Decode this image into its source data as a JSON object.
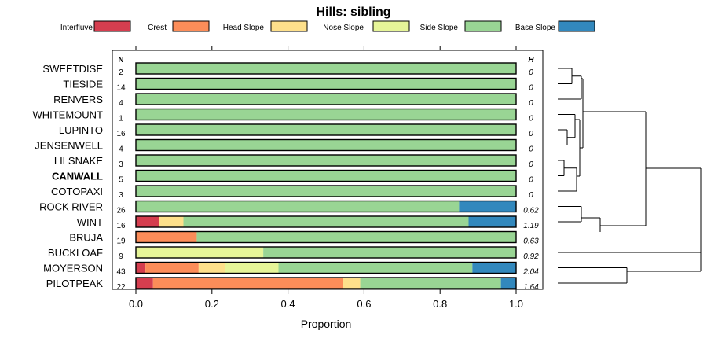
{
  "chart_data": {
    "type": "bar",
    "stacked": true,
    "orientation": "horizontal",
    "title": "Hills: sibling",
    "xlabel": "Proportion",
    "xlim": [
      0,
      1
    ],
    "xticks": [
      "0.0",
      "0.2",
      "0.4",
      "0.6",
      "0.8",
      "1.0"
    ],
    "n_header": "N",
    "h_header": "H",
    "legend_position": "top",
    "classes": [
      {
        "name": "Interfluve",
        "color": "#d53e4f"
      },
      {
        "name": "Crest",
        "color": "#fc8d59"
      },
      {
        "name": "Head Slope",
        "color": "#fee08b"
      },
      {
        "name": "Nose Slope",
        "color": "#e6f598"
      },
      {
        "name": "Side Slope",
        "color": "#99d594"
      },
      {
        "name": "Base Slope",
        "color": "#3288bd"
      }
    ],
    "rows": [
      {
        "name": "SWEETDISE",
        "n": "2",
        "h": "0",
        "bold": false,
        "values": [
          0,
          0,
          0,
          0,
          1.0,
          0
        ]
      },
      {
        "name": "TIESIDE",
        "n": "14",
        "h": "0",
        "bold": false,
        "values": [
          0,
          0,
          0,
          0,
          1.0,
          0
        ]
      },
      {
        "name": "RENVERS",
        "n": "4",
        "h": "0",
        "bold": false,
        "values": [
          0,
          0,
          0,
          0,
          1.0,
          0
        ]
      },
      {
        "name": "WHITEMOUNT",
        "n": "1",
        "h": "0",
        "bold": false,
        "values": [
          0,
          0,
          0,
          0,
          1.0,
          0
        ]
      },
      {
        "name": "LUPINTO",
        "n": "16",
        "h": "0",
        "bold": false,
        "values": [
          0,
          0,
          0,
          0,
          1.0,
          0
        ]
      },
      {
        "name": "JENSENWELL",
        "n": "4",
        "h": "0",
        "bold": false,
        "values": [
          0,
          0,
          0,
          0,
          1.0,
          0
        ]
      },
      {
        "name": "LILSNAKE",
        "n": "3",
        "h": "0",
        "bold": false,
        "values": [
          0,
          0,
          0,
          0,
          1.0,
          0
        ]
      },
      {
        "name": "CANWALL",
        "n": "5",
        "h": "0",
        "bold": true,
        "values": [
          0,
          0,
          0,
          0,
          1.0,
          0
        ]
      },
      {
        "name": "COTOPAXI",
        "n": "3",
        "h": "0",
        "bold": false,
        "values": [
          0,
          0,
          0,
          0,
          1.0,
          0
        ]
      },
      {
        "name": "ROCK RIVER",
        "n": "26",
        "h": "0.62",
        "bold": false,
        "values": [
          0,
          0,
          0,
          0,
          0.85,
          0.15
        ]
      },
      {
        "name": "WINT",
        "n": "16",
        "h": "1.19",
        "bold": false,
        "values": [
          0.06,
          0,
          0.065,
          0,
          0.75,
          0.125
        ]
      },
      {
        "name": "BRUJA",
        "n": "19",
        "h": "0.63",
        "bold": false,
        "values": [
          0,
          0.16,
          0,
          0,
          0.84,
          0
        ]
      },
      {
        "name": "BUCKLOAF",
        "n": "9",
        "h": "0.92",
        "bold": false,
        "values": [
          0,
          0,
          0,
          0.335,
          0.665,
          0
        ]
      },
      {
        "name": "MOYERSON",
        "n": "43",
        "h": "2.04",
        "bold": false,
        "values": [
          0.025,
          0.14,
          0.07,
          0.14,
          0.51,
          0.115
        ]
      },
      {
        "name": "PILOTPEAK",
        "n": "22",
        "h": "1.64",
        "bold": false,
        "values": [
          0.045,
          0.5,
          0.045,
          0,
          0.37,
          0.04
        ]
      }
    ],
    "dendrogram_note": "Hierarchical clustering tree drawn on the right side of the panel"
  }
}
